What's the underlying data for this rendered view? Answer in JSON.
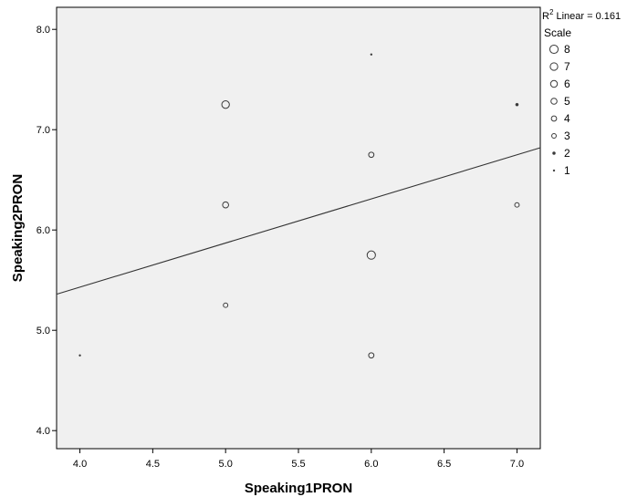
{
  "chart_data": {
    "type": "scatter",
    "xlabel": "Speaking1PRON",
    "ylabel": "Speaking2PRON",
    "xlim": [
      3.84,
      7.16
    ],
    "ylim": [
      3.82,
      8.22
    ],
    "x_ticks": [
      4.0,
      4.5,
      5.0,
      5.5,
      6.0,
      6.5,
      7.0
    ],
    "y_ticks": [
      4.0,
      5.0,
      6.0,
      7.0,
      8.0
    ],
    "x_tick_labels": [
      "4.0",
      "4.5",
      "5.0",
      "5.5",
      "6.0",
      "6.5",
      "7.0"
    ],
    "y_tick_labels": [
      "4.0",
      "5.0",
      "6.0",
      "7.0",
      "8.0"
    ],
    "points": [
      {
        "x": 4.0,
        "y": 4.75,
        "size": 1
      },
      {
        "x": 5.0,
        "y": 7.25,
        "size": 7
      },
      {
        "x": 5.0,
        "y": 6.25,
        "size": 5
      },
      {
        "x": 5.0,
        "y": 5.25,
        "size": 3
      },
      {
        "x": 6.0,
        "y": 7.75,
        "size": 1
      },
      {
        "x": 6.0,
        "y": 6.75,
        "size": 4
      },
      {
        "x": 6.0,
        "y": 5.75,
        "size": 8
      },
      {
        "x": 6.0,
        "y": 4.75,
        "size": 4
      },
      {
        "x": 7.0,
        "y": 7.25,
        "size": 2
      },
      {
        "x": 7.0,
        "y": 6.25,
        "size": 3
      }
    ],
    "fit_line": {
      "x": [
        3.84,
        7.16
      ],
      "y": [
        5.36,
        6.82
      ]
    },
    "r2_label": {
      "prefix": "R",
      "sup": "2",
      "text": " Linear = 0.161"
    },
    "legend": {
      "title": "Scale",
      "placement": "right",
      "entries": [
        {
          "label": "8",
          "size": 8
        },
        {
          "label": "7",
          "size": 7
        },
        {
          "label": "6",
          "size": 6
        },
        {
          "label": "5",
          "size": 5
        },
        {
          "label": "4",
          "size": 4
        },
        {
          "label": "3",
          "size": 3
        },
        {
          "label": "2",
          "size": 2
        },
        {
          "label": "1",
          "size": 1
        }
      ]
    },
    "grid": false,
    "colors": {
      "plot_background": "#f0f0f0",
      "marker": "#3a3a3a",
      "fit_line": "#333333"
    }
  }
}
